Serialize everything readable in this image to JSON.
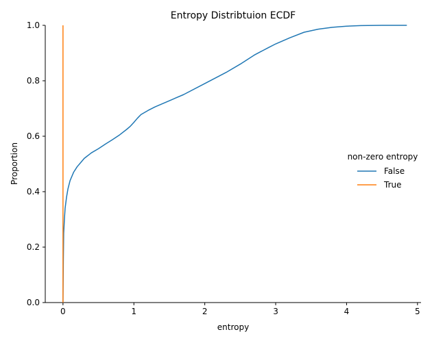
{
  "chart_data": {
    "type": "line",
    "title": "Entropy Distribtuion ECDF",
    "xlabel": "entropy",
    "ylabel": "Proportion",
    "xlim": [
      -0.25,
      5.05
    ],
    "ylim": [
      0,
      1
    ],
    "xticks": [
      "0",
      "1",
      "2",
      "3",
      "4",
      "5"
    ],
    "yticks": [
      "0.0",
      "0.2",
      "0.4",
      "0.6",
      "0.8",
      "1.0"
    ],
    "grid": false,
    "legend": {
      "title": "non-zero entropy",
      "placement": "right"
    },
    "series": [
      {
        "name": "False",
        "color": "#1f77b4",
        "x": [
          0,
          0.005,
          0.01,
          0.02,
          0.03,
          0.05,
          0.07,
          0.1,
          0.15,
          0.2,
          0.25,
          0.3,
          0.4,
          0.5,
          0.6,
          0.7,
          0.8,
          0.9,
          0.95,
          1.0,
          1.05,
          1.1,
          1.2,
          1.3,
          1.5,
          1.7,
          2.0,
          2.3,
          2.5,
          2.7,
          2.9,
          3.0,
          3.2,
          3.4,
          3.6,
          3.8,
          4.0,
          4.2,
          4.5,
          4.85
        ],
        "y": [
          0,
          0.15,
          0.25,
          0.3,
          0.34,
          0.38,
          0.41,
          0.44,
          0.47,
          0.49,
          0.505,
          0.52,
          0.54,
          0.555,
          0.572,
          0.588,
          0.605,
          0.625,
          0.636,
          0.65,
          0.665,
          0.678,
          0.693,
          0.706,
          0.728,
          0.75,
          0.79,
          0.83,
          0.86,
          0.893,
          0.92,
          0.933,
          0.955,
          0.975,
          0.986,
          0.993,
          0.997,
          0.999,
          1.0,
          1.0
        ]
      },
      {
        "name": "True",
        "color": "#ff7f0e",
        "x": [
          0,
          0
        ],
        "y": [
          0,
          1
        ]
      }
    ]
  }
}
